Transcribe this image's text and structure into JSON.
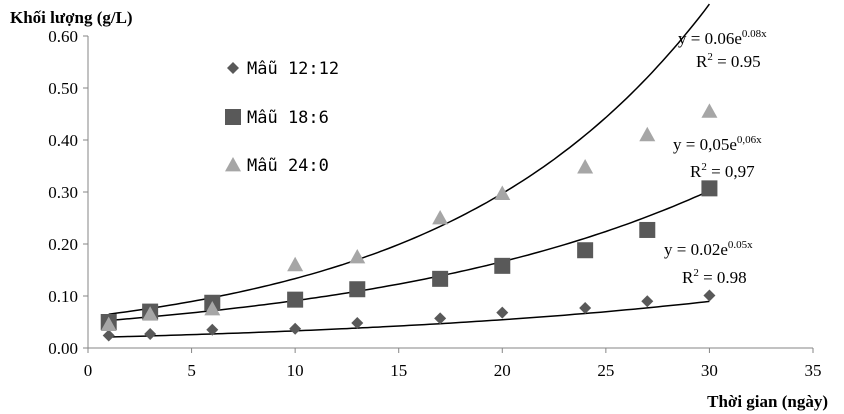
{
  "chart_data": {
    "type": "scatter",
    "xlabel": "Thời gian (ngày)",
    "ylabel": "Khối lượng (g/L)",
    "xlim": [
      0,
      35
    ],
    "ylim": [
      0,
      0.6
    ],
    "x_ticks": [
      "0",
      "5",
      "10",
      "15",
      "20",
      "25",
      "30",
      "35"
    ],
    "y_ticks": [
      "0.00",
      "0.10",
      "0.20",
      "0.30",
      "0.40",
      "0.50",
      "0.60"
    ],
    "grid": false,
    "legend_position": "left",
    "series": [
      {
        "name": "Mẫu 12:12",
        "marker": "diamond",
        "color": "#595959",
        "x": [
          1,
          3,
          6,
          10,
          13,
          17,
          20,
          24,
          27,
          30
        ],
        "y": [
          0.024,
          0.027,
          0.035,
          0.037,
          0.048,
          0.057,
          0.068,
          0.077,
          0.09,
          0.101
        ],
        "trendline": {
          "a": 0.02,
          "b": 0.05,
          "line1": "y = 0.02e",
          "exp": "0.05x",
          "line2": "R",
          "r_exp": "2",
          "r_val": " = 0.98"
        }
      },
      {
        "name": "Mẫu 18:6",
        "marker": "square",
        "color": "#595959",
        "x": [
          1,
          3,
          6,
          10,
          13,
          17,
          20,
          24,
          27,
          30
        ],
        "y": [
          0.05,
          0.07,
          0.087,
          0.093,
          0.113,
          0.133,
          0.158,
          0.188,
          0.227,
          0.307
        ],
        "trendline": {
          "a": 0.05,
          "b": 0.06,
          "line1": "y = 0,05e",
          "exp": "0,06x",
          "line2": "R",
          "r_exp": "2",
          "r_val": " = 0,97"
        }
      },
      {
        "name": "Mẫu 24:0",
        "marker": "triangle",
        "color": "#a6a6a6",
        "x": [
          1,
          3,
          6,
          10,
          13,
          17,
          20,
          24,
          27,
          30
        ],
        "y": [
          0.045,
          0.065,
          0.075,
          0.16,
          0.175,
          0.25,
          0.297,
          0.348,
          0.41,
          0.455
        ],
        "trendline": {
          "a": 0.06,
          "b": 0.08,
          "line1": "y = 0.06e",
          "exp": "0.08x",
          "line2": "R",
          "r_exp": "2",
          "r_val": " = 0.95"
        }
      }
    ]
  }
}
